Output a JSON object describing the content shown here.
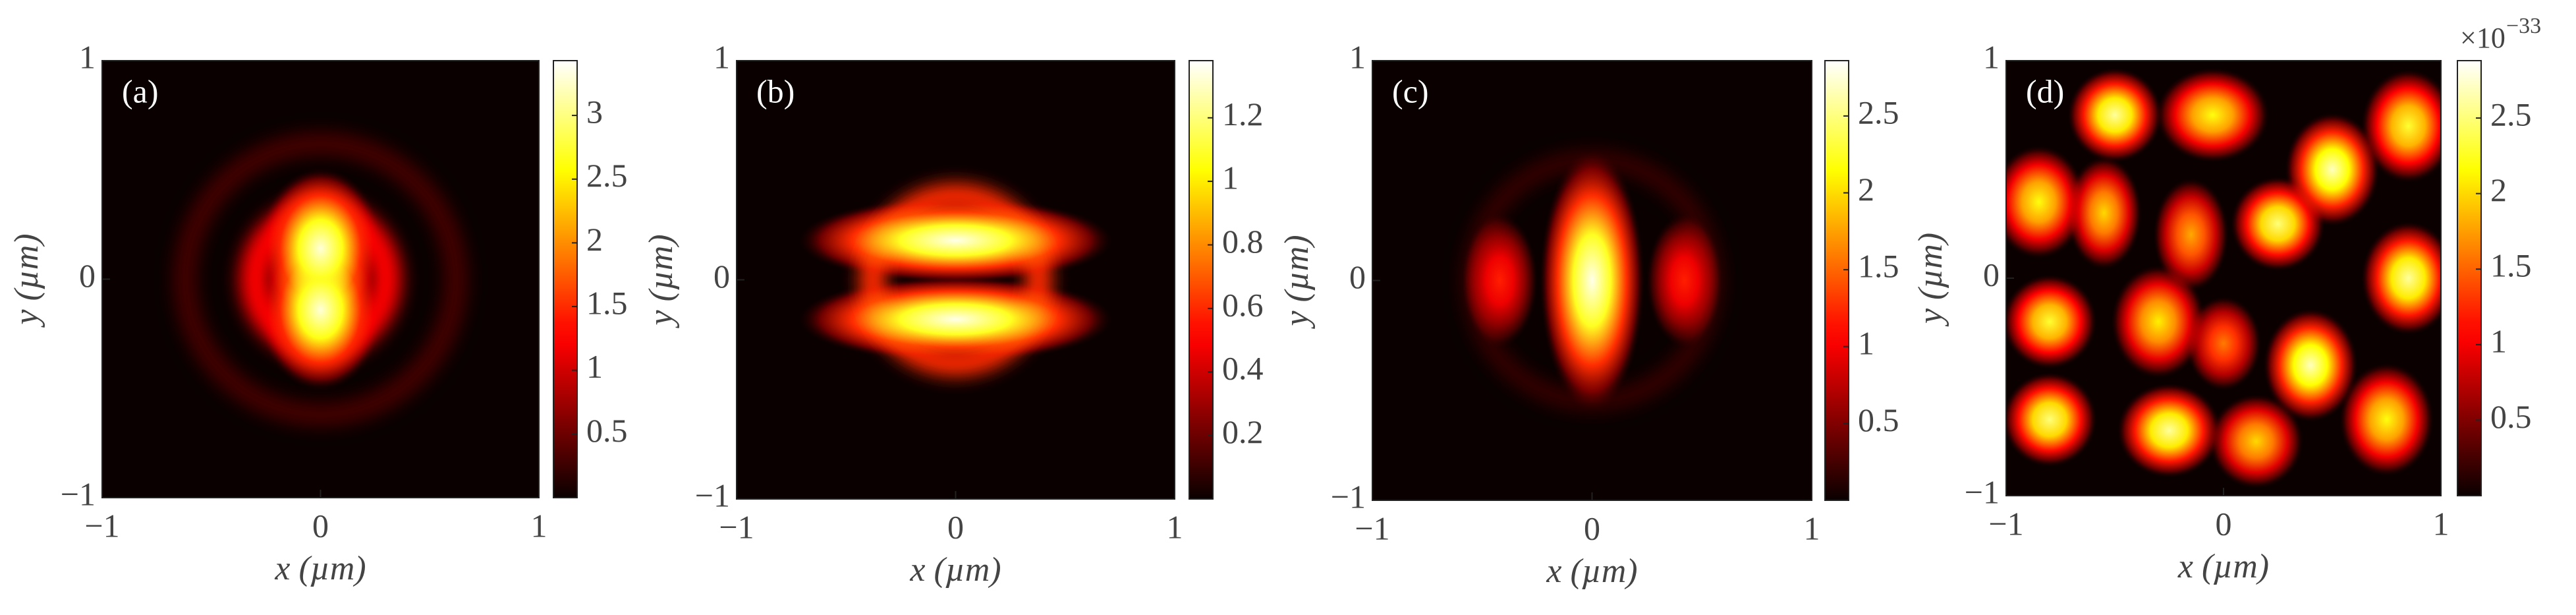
{
  "chart_data": [
    {
      "type": "heatmap",
      "panel_label": "(a)",
      "xlabel": "x (µm)",
      "ylabel": "y (µm)",
      "colormap": "hot",
      "xlim": [
        -1,
        1
      ],
      "ylim": [
        -1,
        1
      ],
      "xticks": [
        {
          "value": -1,
          "label": "−1"
        },
        0,
        1
      ],
      "yticks": [
        {
          "value": -1,
          "label": "−1"
        },
        0,
        1
      ],
      "clim": [
        0,
        3.43
      ],
      "cticks": [
        0.5,
        1,
        1.5,
        2,
        2.5,
        3
      ],
      "rings": [
        {
          "r": 0.3,
          "width": 0.14,
          "value": 1.3
        },
        {
          "r": 0.62,
          "width": 0.1,
          "value": 0.3
        }
      ],
      "features": [
        {
          "x": 0,
          "y": 0.14,
          "sx": 0.13,
          "sy": 0.17,
          "value": 3.3
        },
        {
          "x": 0,
          "y": -0.14,
          "sx": 0.13,
          "sy": 0.17,
          "value": 3.3
        }
      ]
    },
    {
      "type": "heatmap",
      "panel_label": "(b)",
      "xlabel": "x (µm)",
      "ylabel": "y (µm)",
      "colormap": "hot",
      "xlim": [
        -1,
        1
      ],
      "ylim": [
        -1,
        1
      ],
      "xticks": [
        {
          "value": -1,
          "label": "−1"
        },
        0,
        1
      ],
      "yticks": [
        {
          "value": -1,
          "label": "−1"
        },
        0,
        1
      ],
      "clim": [
        0,
        1.38
      ],
      "cticks": [
        0.2,
        0.4,
        0.6,
        0.8,
        1,
        1.2
      ],
      "rings": [
        {
          "r": 0.38,
          "width": 0.12,
          "value": 0.6
        }
      ],
      "features": [
        {
          "x": 0,
          "y": 0.18,
          "sx": 0.33,
          "sy": 0.09,
          "value": 1.35
        },
        {
          "x": 0,
          "y": -0.18,
          "sx": 0.33,
          "sy": 0.09,
          "value": 1.35
        }
      ]
    },
    {
      "type": "heatmap",
      "panel_label": "(c)",
      "xlabel": "x (µm)",
      "ylabel": "y (µm)",
      "colormap": "hot",
      "xlim": [
        -1,
        1
      ],
      "ylim": [
        -1,
        1
      ],
      "xticks": [
        {
          "value": -1,
          "label": "−1"
        },
        0,
        1
      ],
      "yticks": [
        {
          "value": -1,
          "label": "−1"
        },
        0,
        1
      ],
      "clim": [
        0,
        2.86
      ],
      "cticks": [
        0.5,
        1,
        1.5,
        2,
        2.5
      ],
      "rings": [
        {
          "r": 0.55,
          "width": 0.08,
          "value": 0.2
        }
      ],
      "features": [
        {
          "x": 0,
          "y": 0,
          "sx": 0.11,
          "sy": 0.27,
          "value": 2.8
        },
        {
          "x": -0.42,
          "y": 0,
          "sx": 0.08,
          "sy": 0.14,
          "value": 1.2
        },
        {
          "x": 0.42,
          "y": 0,
          "sx": 0.08,
          "sy": 0.14,
          "value": 1.2
        }
      ]
    },
    {
      "type": "heatmap",
      "panel_label": "(d)",
      "xlabel": "x (µm)",
      "ylabel": "y (µm)",
      "colormap": "hot",
      "xlim": [
        -1,
        1
      ],
      "ylim": [
        -1,
        1
      ],
      "xticks": [
        {
          "value": -1,
          "label": "−1"
        },
        0,
        1
      ],
      "yticks": [
        {
          "value": -1,
          "label": "−1"
        },
        0,
        1
      ],
      "clim": [
        0,
        2.88
      ],
      "cticks": [
        0.5,
        1,
        1.5,
        2,
        2.5
      ],
      "cscale_base": "×10",
      "cscale_exp": "−33",
      "rings": [],
      "features": [
        {
          "x": -0.5,
          "y": 0.75,
          "sx": 0.1,
          "sy": 0.1,
          "value": 2.6
        },
        {
          "x": -0.05,
          "y": 0.75,
          "sx": 0.12,
          "sy": 0.1,
          "value": 2.2
        },
        {
          "x": 0.5,
          "y": 0.5,
          "sx": 0.1,
          "sy": 0.12,
          "value": 2.7
        },
        {
          "x": 0.85,
          "y": 0.7,
          "sx": 0.1,
          "sy": 0.12,
          "value": 2.3
        },
        {
          "x": -0.85,
          "y": 0.35,
          "sx": 0.1,
          "sy": 0.12,
          "value": 2.2
        },
        {
          "x": -0.55,
          "y": 0.3,
          "sx": 0.08,
          "sy": 0.12,
          "value": 2.0
        },
        {
          "x": 0.25,
          "y": 0.25,
          "sx": 0.1,
          "sy": 0.1,
          "value": 2.5
        },
        {
          "x": -0.15,
          "y": 0.2,
          "sx": 0.08,
          "sy": 0.12,
          "value": 1.8
        },
        {
          "x": 0.85,
          "y": 0.0,
          "sx": 0.1,
          "sy": 0.12,
          "value": 2.6
        },
        {
          "x": -0.8,
          "y": -0.2,
          "sx": 0.1,
          "sy": 0.1,
          "value": 2.3
        },
        {
          "x": -0.3,
          "y": -0.2,
          "sx": 0.1,
          "sy": 0.12,
          "value": 2.1
        },
        {
          "x": 0.4,
          "y": -0.4,
          "sx": 0.1,
          "sy": 0.12,
          "value": 2.7
        },
        {
          "x": -0.8,
          "y": -0.65,
          "sx": 0.1,
          "sy": 0.1,
          "value": 2.5
        },
        {
          "x": -0.25,
          "y": -0.7,
          "sx": 0.11,
          "sy": 0.1,
          "value": 2.6
        },
        {
          "x": 0.15,
          "y": -0.75,
          "sx": 0.1,
          "sy": 0.1,
          "value": 2.0
        },
        {
          "x": 0.75,
          "y": -0.65,
          "sx": 0.1,
          "sy": 0.12,
          "value": 2.2
        },
        {
          "x": 0.0,
          "y": -0.3,
          "sx": 0.08,
          "sy": 0.1,
          "value": 1.6
        }
      ]
    }
  ]
}
